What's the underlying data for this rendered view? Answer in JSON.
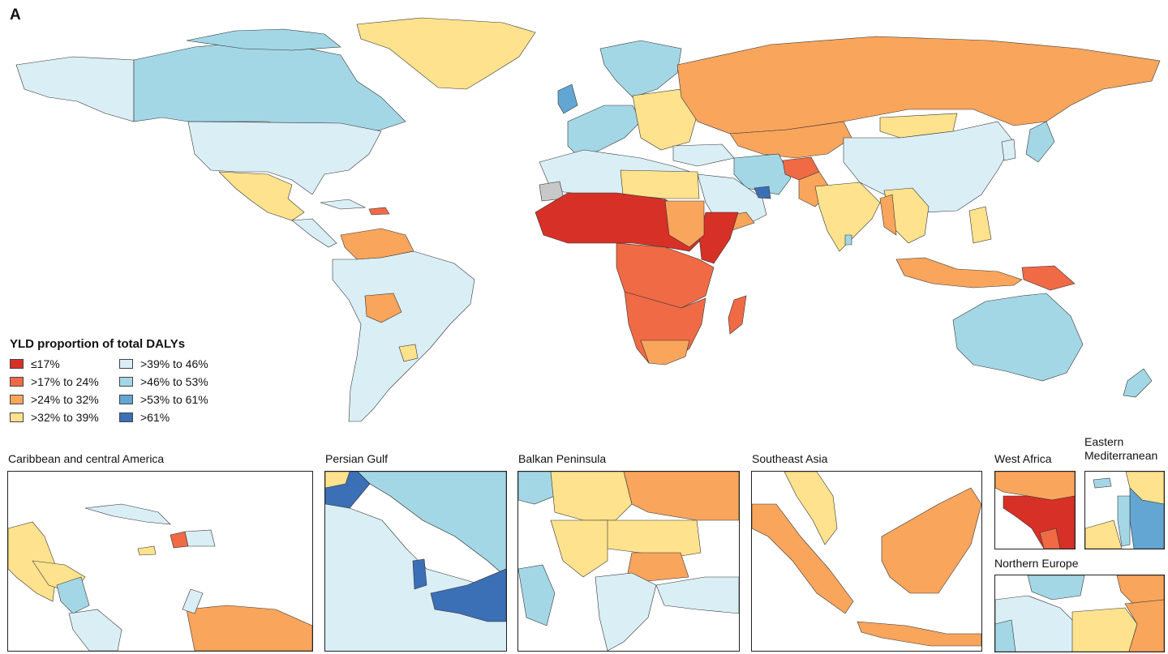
{
  "figure": {
    "panel_letter": "A"
  },
  "legend": {
    "title": "YLD proportion of total DALYs",
    "items": [
      {
        "label": "≤17%",
        "color": "#d73027"
      },
      {
        "label": ">17% to 24%",
        "color": "#ef6a45"
      },
      {
        "label": ">24% to 32%",
        "color": "#f9a55c"
      },
      {
        "label": ">32% to 39%",
        "color": "#fee28d"
      },
      {
        "label": ">39% to 46%",
        "color": "#daeef5"
      },
      {
        "label": ">46% to 53%",
        "color": "#a3d7e6"
      },
      {
        "label": ">53% to 61%",
        "color": "#64a6d3"
      },
      {
        "label": ">61%",
        "color": "#3b6fb6"
      }
    ]
  },
  "insets": [
    {
      "label": "Caribbean and central America"
    },
    {
      "label": "Persian Gulf"
    },
    {
      "label": "Balkan Peninsula"
    },
    {
      "label": "Southeast Asia"
    },
    {
      "label": "West Africa"
    },
    {
      "label": "Eastern Mediterranean"
    },
    {
      "label": "Northern Europe"
    }
  ],
  "colors": {
    "no_data": "#c8c8c8",
    "outline": "#333333"
  }
}
